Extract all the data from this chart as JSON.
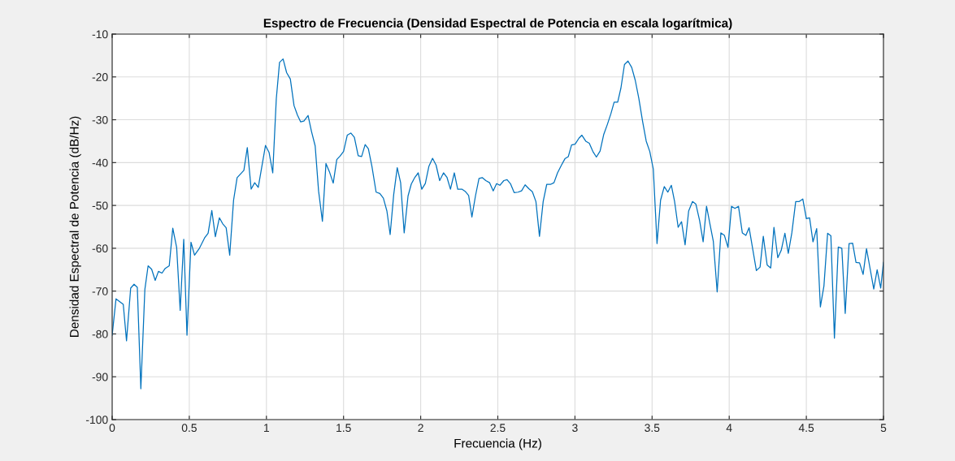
{
  "chart_data": {
    "type": "line",
    "title": "Espectro de Frecuencia (Densidad Espectral de Potencia en escala logarítmica)",
    "xlabel": "Frecuencia (Hz)",
    "ylabel": "Densidad Espectral de Potencia (dB/Hz)",
    "xlim": [
      0,
      5
    ],
    "xticks": [
      0,
      0.5,
      1,
      1.5,
      2,
      2.5,
      3,
      3.5,
      4,
      4.5,
      5
    ],
    "ylim": [
      -100,
      -10
    ],
    "yticks": [
      -100,
      -90,
      -80,
      -70,
      -60,
      -50,
      -40,
      -30,
      -20,
      -10
    ],
    "grid": true,
    "series": [
      {
        "color": "#0072bd",
        "x": [
          0,
          0.025,
          0.072,
          0.093,
          0.12,
          0.142,
          0.163,
          0.186,
          0.212,
          0.233,
          0.256,
          0.279,
          0.3,
          0.323,
          0.344,
          0.37,
          0.393,
          0.418,
          0.441,
          0.464,
          0.485,
          0.511,
          0.534,
          0.564,
          0.599,
          0.622,
          0.646,
          0.669,
          0.695,
          0.717,
          0.739,
          0.762,
          0.787,
          0.81,
          0.854,
          0.876,
          0.901,
          0.924,
          0.947,
          0.994,
          1.017,
          1.041,
          1.064,
          1.085,
          1.108,
          1.131,
          1.155,
          1.179,
          1.201,
          1.222,
          1.243,
          1.27,
          1.292,
          1.316,
          1.338,
          1.363,
          1.386,
          1.408,
          1.433,
          1.456,
          1.477,
          1.5,
          1.524,
          1.547,
          1.57,
          1.595,
          1.617,
          1.64,
          1.661,
          1.684,
          1.711,
          1.735,
          1.758,
          1.781,
          1.802,
          1.825,
          1.848,
          1.87,
          1.893,
          1.918,
          1.939,
          1.963,
          1.984,
          2.007,
          2.03,
          2.053,
          2.077,
          2.1,
          2.123,
          2.148,
          2.17,
          2.193,
          2.218,
          2.24,
          2.267,
          2.288,
          2.311,
          2.332,
          2.355,
          2.378,
          2.399,
          2.422,
          2.447,
          2.47,
          2.492,
          2.513,
          2.539,
          2.56,
          2.583,
          2.606,
          2.631,
          2.654,
          2.677,
          2.701,
          2.724,
          2.747,
          2.77,
          2.794,
          2.817,
          2.841,
          2.864,
          2.887,
          2.911,
          2.935,
          2.957,
          2.978,
          3.001,
          3.026,
          3.045,
          3.07,
          3.093,
          3.116,
          3.139,
          3.163,
          3.186,
          3.21,
          3.233,
          3.254,
          3.277,
          3.298,
          3.321,
          3.344,
          3.368,
          3.391,
          3.414,
          3.439,
          3.462,
          3.485,
          3.508,
          3.532,
          3.555,
          3.579,
          3.602,
          3.625,
          3.646,
          3.669,
          3.691,
          3.714,
          3.737,
          3.762,
          3.784,
          3.808,
          3.831,
          3.853,
          3.876,
          3.897,
          3.922,
          3.946,
          3.969,
          3.992,
          4.015,
          4.037,
          4.06,
          4.085,
          4.108,
          4.129,
          4.176,
          4.2,
          4.221,
          4.246,
          4.269,
          4.29,
          4.315,
          4.337,
          4.361,
          4.383,
          4.406,
          4.431,
          4.454,
          4.477,
          4.5,
          4.521,
          4.543,
          4.567,
          4.591,
          4.614,
          4.638,
          4.659,
          4.682,
          4.707,
          4.73,
          4.752,
          4.777,
          4.8,
          4.822,
          4.845,
          4.868,
          4.89,
          4.914,
          4.937,
          4.959,
          4.982,
          5.0
        ],
        "values": [
          -80.3,
          -71.8,
          -73.1,
          -81.6,
          -69.3,
          -68.4,
          -69.1,
          -92.8,
          -69.6,
          -64.1,
          -64.9,
          -67.5,
          -65.4,
          -65.8,
          -64.7,
          -64.1,
          -55.3,
          -59.8,
          -74.5,
          -57.9,
          -80.3,
          -58.6,
          -61.6,
          -60.1,
          -57.6,
          -56.5,
          -51.2,
          -57.3,
          -52.9,
          -54.3,
          -55.2,
          -61.6,
          -48.8,
          -43.5,
          -41.8,
          -36.5,
          -46.2,
          -44.7,
          -45.8,
          -36.0,
          -37.6,
          -42.4,
          -25.1,
          -16.6,
          -15.8,
          -19.0,
          -20.5,
          -26.7,
          -28.9,
          -30.5,
          -30.3,
          -29.0,
          -32.7,
          -36.1,
          -46.6,
          -53.7,
          -40.2,
          -42.1,
          -44.8,
          -39.3,
          -38.5,
          -37.4,
          -33.6,
          -33.1,
          -34.1,
          -38.4,
          -38.6,
          -35.8,
          -36.8,
          -40.9,
          -46.9,
          -47.2,
          -48.3,
          -51.3,
          -56.8,
          -47.5,
          -41.2,
          -44.7,
          -56.4,
          -47.8,
          -45.0,
          -43.4,
          -42.4,
          -46.2,
          -44.9,
          -40.9,
          -39.0,
          -40.6,
          -44.2,
          -42.4,
          -43.4,
          -46.2,
          -42.4,
          -46.2,
          -46.2,
          -46.7,
          -47.7,
          -52.7,
          -47.8,
          -43.7,
          -43.5,
          -44.2,
          -44.7,
          -46.6,
          -44.9,
          -45.3,
          -44.2,
          -44.0,
          -45.0,
          -47.0,
          -46.9,
          -46.6,
          -45.2,
          -46.1,
          -46.8,
          -49.1,
          -57.2,
          -49.1,
          -45.1,
          -45.1,
          -44.7,
          -42.4,
          -40.7,
          -39.1,
          -38.6,
          -35.9,
          -35.7,
          -34.3,
          -33.6,
          -35.0,
          -35.5,
          -37.4,
          -38.7,
          -37.3,
          -33.5,
          -31.1,
          -28.6,
          -25.9,
          -25.9,
          -22.6,
          -17.1,
          -16.3,
          -17.8,
          -20.8,
          -25.0,
          -30.5,
          -35.0,
          -37.4,
          -41.5,
          -58.9,
          -48.8,
          -45.6,
          -46.9,
          -45.3,
          -49.1,
          -55.1,
          -53.8,
          -59.2,
          -51.3,
          -49.1,
          -49.7,
          -53.5,
          -58.5,
          -50.2,
          -54.5,
          -58.4,
          -70.2,
          -56.4,
          -57.0,
          -59.8,
          -50.2,
          -50.7,
          -50.2,
          -56.4,
          -57.0,
          -55.2,
          -65.2,
          -64.4,
          -57.2,
          -63.9,
          -64.6,
          -55.1,
          -62.2,
          -60.5,
          -56.5,
          -61.2,
          -56.4,
          -49.1,
          -49.1,
          -48.5,
          -53.1,
          -52.9,
          -58.5,
          -55.4,
          -73.7,
          -68.8,
          -56.5,
          -57.1,
          -81.0,
          -59.7,
          -60.0,
          -75.2,
          -58.9,
          -58.8,
          -63.3,
          -63.4,
          -66.1,
          -60.1,
          -64.9,
          -69.5,
          -65.0,
          -69.3,
          -63.3
        ]
      }
    ]
  }
}
